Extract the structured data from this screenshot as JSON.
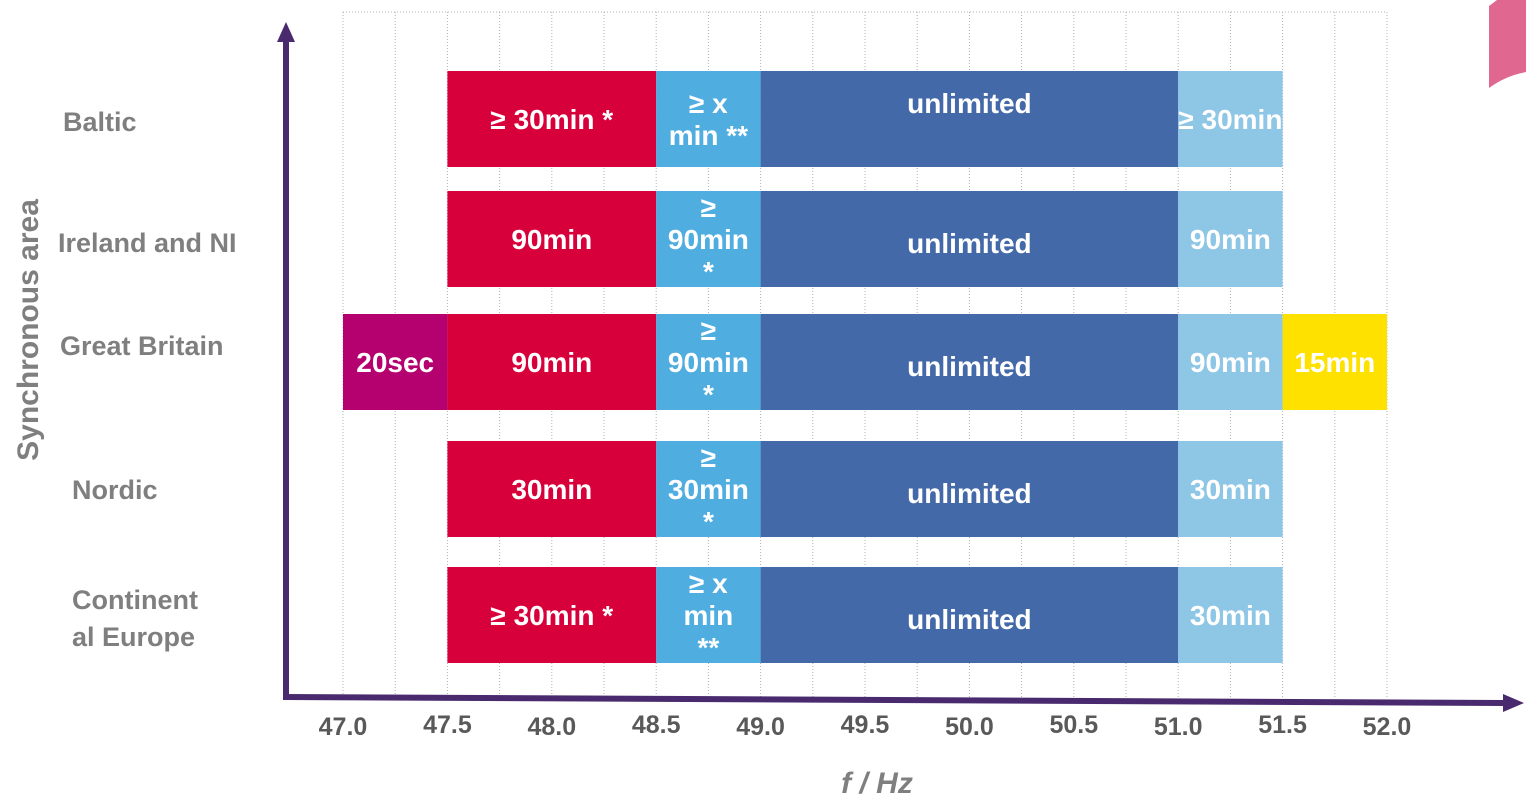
{
  "chart_data": {
    "type": "bar",
    "orientation": "horizontal-ranges",
    "xlabel": "f / Hz",
    "ylabel": "Synchronous area",
    "xlim": [
      47.0,
      52.0
    ],
    "x_ticks": [
      "47.0",
      "47.5",
      "48.0",
      "48.5",
      "49.0",
      "49.5",
      "50.0",
      "50.5",
      "51.0",
      "51.5",
      "52.0"
    ],
    "grid": "vertical dotted",
    "colors": {
      "magenta": "#b5006f",
      "red": "#d8003b",
      "light_blue": "#4fade0",
      "dark_blue": "#4469a8",
      "pale_blue": "#8ec6e6",
      "yellow": "#ffe100",
      "axis": "#4a2a6e",
      "corner_accent": "#e0678f"
    },
    "categories": [
      {
        "name": "Baltic",
        "segments": [
          {
            "from": 47.5,
            "to": 48.5,
            "label": [
              "≥ 30min *"
            ],
            "color": "#d8003b"
          },
          {
            "from": 48.5,
            "to": 49.0,
            "label": [
              "≥ x",
              "min **"
            ],
            "color": "#4fade0"
          },
          {
            "from": 49.0,
            "to": 51.0,
            "label": [
              "unlimited"
            ],
            "color": "#4469a8"
          },
          {
            "from": 51.0,
            "to": 51.5,
            "label": [
              "≥ 30min"
            ],
            "color": "#8ec6e6"
          }
        ]
      },
      {
        "name": "Ireland and NI",
        "segments": [
          {
            "from": 47.5,
            "to": 48.5,
            "label": [
              "90min"
            ],
            "color": "#d8003b"
          },
          {
            "from": 48.5,
            "to": 49.0,
            "label": [
              "≥",
              "90min",
              "*"
            ],
            "color": "#4fade0"
          },
          {
            "from": 49.0,
            "to": 51.0,
            "label": [
              "unlimited"
            ],
            "color": "#4469a8"
          },
          {
            "from": 51.0,
            "to": 51.5,
            "label": [
              "90min"
            ],
            "color": "#8ec6e6"
          }
        ]
      },
      {
        "name": "Great Britain",
        "segments": [
          {
            "from": 47.0,
            "to": 47.5,
            "label": [
              "20sec"
            ],
            "color": "#b5006f"
          },
          {
            "from": 47.5,
            "to": 48.5,
            "label": [
              "90min"
            ],
            "color": "#d8003b"
          },
          {
            "from": 48.5,
            "to": 49.0,
            "label": [
              "≥",
              "90min",
              "*"
            ],
            "color": "#4fade0"
          },
          {
            "from": 49.0,
            "to": 51.0,
            "label": [
              "unlimited"
            ],
            "color": "#4469a8"
          },
          {
            "from": 51.0,
            "to": 51.5,
            "label": [
              "90min"
            ],
            "color": "#8ec6e6"
          },
          {
            "from": 51.5,
            "to": 52.0,
            "label": [
              "15min"
            ],
            "color": "#ffe100"
          }
        ]
      },
      {
        "name": "Nordic",
        "segments": [
          {
            "from": 47.5,
            "to": 48.5,
            "label": [
              "30min"
            ],
            "color": "#d8003b"
          },
          {
            "from": 48.5,
            "to": 49.0,
            "label": [
              "≥",
              "30min",
              "*"
            ],
            "color": "#4fade0"
          },
          {
            "from": 49.0,
            "to": 51.0,
            "label": [
              "unlimited"
            ],
            "color": "#4469a8"
          },
          {
            "from": 51.0,
            "to": 51.5,
            "label": [
              "30min"
            ],
            "color": "#8ec6e6"
          }
        ]
      },
      {
        "name": "Continent al Europe",
        "name_lines": [
          "Continent",
          "al Europe"
        ],
        "segments": [
          {
            "from": 47.5,
            "to": 48.5,
            "label": [
              "≥ 30min *"
            ],
            "color": "#d8003b"
          },
          {
            "from": 48.5,
            "to": 49.0,
            "label": [
              "≥ x",
              "min",
              "**"
            ],
            "color": "#4fade0"
          },
          {
            "from": 49.0,
            "to": 51.0,
            "label": [
              "unlimited"
            ],
            "color": "#4469a8"
          },
          {
            "from": 51.0,
            "to": 51.5,
            "label": [
              "30min"
            ],
            "color": "#8ec6e6"
          }
        ]
      }
    ]
  }
}
